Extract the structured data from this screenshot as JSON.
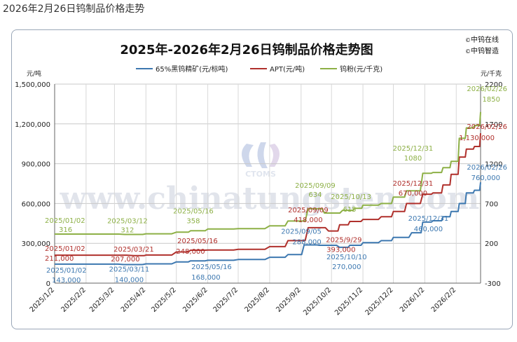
{
  "page": {
    "caption": "2026年2月26日钨制品价格走势"
  },
  "brand": {
    "line1": "中钨在线",
    "line2": "中钨智造"
  },
  "watermark": {
    "text": "www.chinatungsten.com",
    "logo_text": "CTOMS"
  },
  "chart_data": {
    "type": "line",
    "title": "2025年-2026年2月26日钨制品价格走势图",
    "left_unit": "元/吨",
    "right_unit": "元/千克",
    "left_ylim": [
      0,
      1500000
    ],
    "right_ylim": [
      -300,
      2200
    ],
    "left_ticks": [
      "0",
      "300,000",
      "600,000",
      "900,000",
      "1,200,000",
      "1,500,000"
    ],
    "right_ticks": [
      "-300",
      "200",
      "700",
      "1200",
      "1700",
      "2200"
    ],
    "x_ticks": [
      "2025/1/2",
      "2025/2/2",
      "2025/3/2",
      "2025/4/2",
      "2025/5/2",
      "2025/6/2",
      "2025/7/2",
      "2025/8/2",
      "2025/9/2",
      "2025/10/2",
      "2025/11/2",
      "2025/12/2",
      "2026/1/2",
      "2026/2/2"
    ],
    "x_range": [
      "2025-01-02",
      "2026-02-26"
    ],
    "grid": true,
    "legend_position": "top",
    "series": [
      {
        "name": "65%黑钨精矿(元/标吨)",
        "axis": "left",
        "color": "#3d78b0",
        "x": [
          "2025-01-02",
          "2025-02-02",
          "2025-03-11",
          "2025-04-02",
          "2025-05-02",
          "2025-05-16",
          "2025-06-02",
          "2025-07-02",
          "2025-08-02",
          "2025-08-20",
          "2025-09-05",
          "2025-09-20",
          "2025-10-10",
          "2025-10-20",
          "2025-11-02",
          "2025-11-20",
          "2025-12-02",
          "2025-12-20",
          "2025-12-31",
          "2026-01-10",
          "2026-01-20",
          "2026-01-28",
          "2026-02-05",
          "2026-02-12",
          "2026-02-20",
          "2026-02-26"
        ],
        "values": [
          143000,
          143000,
          140000,
          145000,
          160000,
          168000,
          172000,
          178000,
          195000,
          215000,
          288000,
          285000,
          270000,
          285000,
          305000,
          320000,
          345000,
          380000,
          460000,
          470000,
          500000,
          540000,
          600000,
          680000,
          700000,
          760000
        ]
      },
      {
        "name": "APT(元/吨)",
        "axis": "left",
        "color": "#b0302c",
        "x": [
          "2025-01-02",
          "2025-02-02",
          "2025-03-21",
          "2025-04-02",
          "2025-05-02",
          "2025-05-16",
          "2025-06-02",
          "2025-07-02",
          "2025-08-02",
          "2025-08-20",
          "2025-09-09",
          "2025-09-29",
          "2025-10-10",
          "2025-10-20",
          "2025-11-02",
          "2025-11-20",
          "2025-12-02",
          "2025-12-15",
          "2025-12-31",
          "2026-01-10",
          "2026-01-20",
          "2026-01-28",
          "2026-02-05",
          "2026-02-12",
          "2026-02-20",
          "2026-02-26"
        ],
        "values": [
          211000,
          211000,
          207000,
          212000,
          235000,
          248000,
          250000,
          255000,
          275000,
          320000,
          418000,
          393000,
          440000,
          465000,
          480000,
          500000,
          540000,
          600000,
          670000,
          680000,
          740000,
          820000,
          950000,
          1010000,
          1030000,
          1130000
        ]
      },
      {
        "name": "钨粉(元/千克)",
        "axis": "right",
        "color": "#8db046",
        "x": [
          "2025-01-02",
          "2025-02-02",
          "2025-03-12",
          "2025-04-02",
          "2025-05-02",
          "2025-05-16",
          "2025-06-02",
          "2025-07-02",
          "2025-08-02",
          "2025-08-20",
          "2025-09-09",
          "2025-09-25",
          "2025-10-13",
          "2025-10-25",
          "2025-11-02",
          "2025-11-20",
          "2025-12-02",
          "2025-12-15",
          "2025-12-31",
          "2026-01-10",
          "2026-01-20",
          "2026-01-28",
          "2026-02-05",
          "2026-02-12",
          "2026-02-20",
          "2026-02-26"
        ],
        "values": [
          316,
          316,
          312,
          320,
          340,
          358,
          380,
          385,
          420,
          480,
          634,
          580,
          615,
          640,
          680,
          700,
          780,
          860,
          1080,
          1090,
          1150,
          1230,
          1520,
          1650,
          1680,
          1850
        ]
      }
    ],
    "annotations": [
      {
        "text": "2025/01/02",
        "series": 2,
        "date": "2025-01-02",
        "dy": -16,
        "anchor": "start",
        "dx": -14
      },
      {
        "text": "316",
        "series": 2,
        "date": "2025-01-02",
        "dy": -3,
        "anchor": "start",
        "dx": 6
      },
      {
        "text": "2025/03/12",
        "series": 2,
        "date": "2025-03-12",
        "dy": -16,
        "anchor": "middle",
        "dx": 4
      },
      {
        "text": "312",
        "series": 2,
        "date": "2025-03-12",
        "dy": -3,
        "anchor": "middle",
        "dx": 4
      },
      {
        "text": "2025/05/16",
        "series": 2,
        "date": "2025-05-16",
        "dy": -25,
        "anchor": "middle",
        "dx": 4
      },
      {
        "text": "358",
        "series": 2,
        "date": "2025-05-16",
        "dy": -11,
        "anchor": "middle",
        "dx": 4
      },
      {
        "text": "2025/09/09",
        "series": 2,
        "date": "2025-09-09",
        "dy": -30,
        "anchor": "middle",
        "dx": 10
      },
      {
        "text": "634",
        "series": 2,
        "date": "2025-09-09",
        "dy": -17,
        "anchor": "middle",
        "dx": 10
      },
      {
        "text": "2025/10/13",
        "series": 2,
        "date": "2025-10-13",
        "dy": -16,
        "anchor": "middle",
        "dx": 12
      },
      {
        "text": "615",
        "series": 2,
        "date": "2025-10-13",
        "dy": 2,
        "anchor": "middle",
        "dx": 10
      },
      {
        "text": "2025/12/31",
        "series": 2,
        "date": "2025-12-31",
        "dy": -32,
        "anchor": "middle",
        "dx": -14
      },
      {
        "text": "1080",
        "series": 2,
        "date": "2025-12-31",
        "dy": -18,
        "anchor": "middle",
        "dx": -14
      },
      {
        "text": "2026/02/26",
        "series": 2,
        "date": "2026-02-26",
        "dy": -30,
        "anchor": "end",
        "dx": 38
      },
      {
        "text": "1850",
        "series": 2,
        "date": "2026-02-26",
        "dy": -15,
        "anchor": "end",
        "dx": 28
      },
      {
        "text": "2025/01/02",
        "series": 1,
        "date": "2025-01-02",
        "dy": -6,
        "anchor": "start",
        "dx": -14
      },
      {
        "text": "211,000",
        "series": 1,
        "date": "2025-01-02",
        "dy": 8,
        "anchor": "start",
        "dx": -14
      },
      {
        "text": "2025/03/21",
        "series": 1,
        "date": "2025-03-21",
        "dy": -6,
        "anchor": "middle",
        "dx": 0
      },
      {
        "text": "207,000",
        "series": 1,
        "date": "2025-03-21",
        "dy": 8,
        "anchor": "middle",
        "dx": -12
      },
      {
        "text": "2025/05/16",
        "series": 1,
        "date": "2025-05-16",
        "dy": -10,
        "anchor": "middle",
        "dx": 10
      },
      {
        "text": "248,000",
        "series": 1,
        "date": "2025-05-16",
        "dy": 5,
        "anchor": "middle",
        "dx": 0
      },
      {
        "text": "2025/09/09",
        "series": 1,
        "date": "2025-09-09",
        "dy": -22,
        "anchor": "middle",
        "dx": 0
      },
      {
        "text": "418,000",
        "series": 1,
        "date": "2025-09-09",
        "dy": -8,
        "anchor": "middle",
        "dx": 0
      },
      {
        "text": "2025/9/29",
        "series": 1,
        "date": "2025-09-29",
        "dy": 16,
        "anchor": "middle",
        "dx": 22
      },
      {
        "text": "393,000",
        "series": 1,
        "date": "2025-09-29",
        "dy": 30,
        "anchor": "middle",
        "dx": 18
      },
      {
        "text": "2025/12/31",
        "series": 1,
        "date": "2025-12-31",
        "dy": -12,
        "anchor": "middle",
        "dx": -14
      },
      {
        "text": "670,000",
        "series": 1,
        "date": "2025-12-31",
        "dy": 2,
        "anchor": "middle",
        "dx": -14
      },
      {
        "text": "2026/02/26",
        "series": 1,
        "date": "2026-02-26",
        "dy": -6,
        "anchor": "end",
        "dx": 38
      },
      {
        "text": "1,130,000",
        "series": 1,
        "date": "2026-02-26",
        "dy": 10,
        "anchor": "end",
        "dx": 20
      },
      {
        "text": "2025/01/02",
        "series": 0,
        "date": "2025-01-02",
        "dy": 12,
        "anchor": "start",
        "dx": -12
      },
      {
        "text": "143,000",
        "series": 0,
        "date": "2025-01-02",
        "dy": 26,
        "anchor": "start",
        "dx": -4
      },
      {
        "text": "2025/03/11",
        "series": 0,
        "date": "2025-03-11",
        "dy": 10,
        "anchor": "middle",
        "dx": 8
      },
      {
        "text": "140,000",
        "series": 0,
        "date": "2025-03-11",
        "dy": 25,
        "anchor": "middle",
        "dx": 8
      },
      {
        "text": "2025/05/16",
        "series": 0,
        "date": "2025-05-16",
        "dy": 12,
        "anchor": "middle",
        "dx": 30
      },
      {
        "text": "168,000",
        "series": 0,
        "date": "2025-05-16",
        "dy": 27,
        "anchor": "middle",
        "dx": 22
      },
      {
        "text": "2025/09/05",
        "series": 0,
        "date": "2025-09-05",
        "dy": -16,
        "anchor": "middle",
        "dx": -4
      },
      {
        "text": "288,000",
        "series": 0,
        "date": "2025-09-05",
        "dy": -1,
        "anchor": "middle",
        "dx": 4
      },
      {
        "text": "2025/10/10",
        "series": 0,
        "date": "2025-10-10",
        "dy": 17,
        "anchor": "middle",
        "dx": 10
      },
      {
        "text": "270,000",
        "series": 0,
        "date": "2025-10-10",
        "dy": 31,
        "anchor": "middle",
        "dx": 10
      },
      {
        "text": "2025/12/31",
        "series": 0,
        "date": "2025-12-31",
        "dy": -2,
        "anchor": "middle",
        "dx": 8
      },
      {
        "text": "460,000",
        "series": 0,
        "date": "2025-12-31",
        "dy": 13,
        "anchor": "middle",
        "dx": 8
      },
      {
        "text": "2026/02/26",
        "series": 0,
        "date": "2026-02-26",
        "dy": -18,
        "anchor": "end",
        "dx": 38
      },
      {
        "text": "760,000",
        "series": 0,
        "date": "2026-02-26",
        "dy": -3,
        "anchor": "end",
        "dx": 28
      }
    ]
  }
}
